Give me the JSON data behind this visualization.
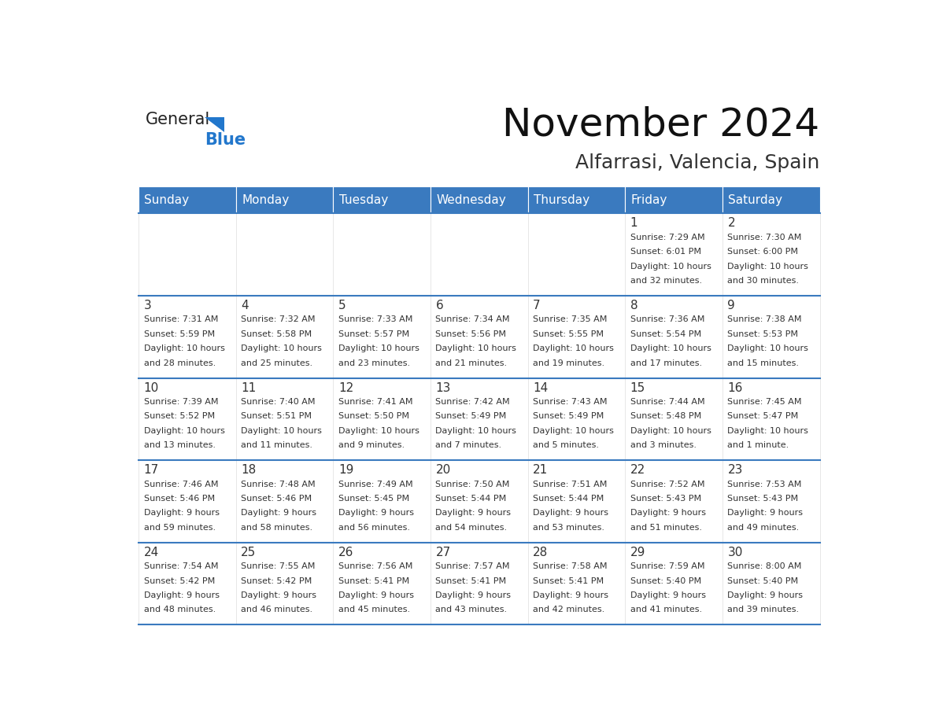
{
  "title": "November 2024",
  "subtitle": "Alfarrasi, Valencia, Spain",
  "header_color": "#3a7abf",
  "header_text_color": "#ffffff",
  "border_color": "#3a7abf",
  "text_color": "#333333",
  "days_of_week": [
    "Sunday",
    "Monday",
    "Tuesday",
    "Wednesday",
    "Thursday",
    "Friday",
    "Saturday"
  ],
  "weeks": [
    [
      {
        "day": "",
        "sunrise": "",
        "sunset": "",
        "daylight": ""
      },
      {
        "day": "",
        "sunrise": "",
        "sunset": "",
        "daylight": ""
      },
      {
        "day": "",
        "sunrise": "",
        "sunset": "",
        "daylight": ""
      },
      {
        "day": "",
        "sunrise": "",
        "sunset": "",
        "daylight": ""
      },
      {
        "day": "",
        "sunrise": "",
        "sunset": "",
        "daylight": ""
      },
      {
        "day": "1",
        "sunrise": "Sunrise: 7:29 AM",
        "sunset": "Sunset: 6:01 PM",
        "daylight": "Daylight: 10 hours\nand 32 minutes."
      },
      {
        "day": "2",
        "sunrise": "Sunrise: 7:30 AM",
        "sunset": "Sunset: 6:00 PM",
        "daylight": "Daylight: 10 hours\nand 30 minutes."
      }
    ],
    [
      {
        "day": "3",
        "sunrise": "Sunrise: 7:31 AM",
        "sunset": "Sunset: 5:59 PM",
        "daylight": "Daylight: 10 hours\nand 28 minutes."
      },
      {
        "day": "4",
        "sunrise": "Sunrise: 7:32 AM",
        "sunset": "Sunset: 5:58 PM",
        "daylight": "Daylight: 10 hours\nand 25 minutes."
      },
      {
        "day": "5",
        "sunrise": "Sunrise: 7:33 AM",
        "sunset": "Sunset: 5:57 PM",
        "daylight": "Daylight: 10 hours\nand 23 minutes."
      },
      {
        "day": "6",
        "sunrise": "Sunrise: 7:34 AM",
        "sunset": "Sunset: 5:56 PM",
        "daylight": "Daylight: 10 hours\nand 21 minutes."
      },
      {
        "day": "7",
        "sunrise": "Sunrise: 7:35 AM",
        "sunset": "Sunset: 5:55 PM",
        "daylight": "Daylight: 10 hours\nand 19 minutes."
      },
      {
        "day": "8",
        "sunrise": "Sunrise: 7:36 AM",
        "sunset": "Sunset: 5:54 PM",
        "daylight": "Daylight: 10 hours\nand 17 minutes."
      },
      {
        "day": "9",
        "sunrise": "Sunrise: 7:38 AM",
        "sunset": "Sunset: 5:53 PM",
        "daylight": "Daylight: 10 hours\nand 15 minutes."
      }
    ],
    [
      {
        "day": "10",
        "sunrise": "Sunrise: 7:39 AM",
        "sunset": "Sunset: 5:52 PM",
        "daylight": "Daylight: 10 hours\nand 13 minutes."
      },
      {
        "day": "11",
        "sunrise": "Sunrise: 7:40 AM",
        "sunset": "Sunset: 5:51 PM",
        "daylight": "Daylight: 10 hours\nand 11 minutes."
      },
      {
        "day": "12",
        "sunrise": "Sunrise: 7:41 AM",
        "sunset": "Sunset: 5:50 PM",
        "daylight": "Daylight: 10 hours\nand 9 minutes."
      },
      {
        "day": "13",
        "sunrise": "Sunrise: 7:42 AM",
        "sunset": "Sunset: 5:49 PM",
        "daylight": "Daylight: 10 hours\nand 7 minutes."
      },
      {
        "day": "14",
        "sunrise": "Sunrise: 7:43 AM",
        "sunset": "Sunset: 5:49 PM",
        "daylight": "Daylight: 10 hours\nand 5 minutes."
      },
      {
        "day": "15",
        "sunrise": "Sunrise: 7:44 AM",
        "sunset": "Sunset: 5:48 PM",
        "daylight": "Daylight: 10 hours\nand 3 minutes."
      },
      {
        "day": "16",
        "sunrise": "Sunrise: 7:45 AM",
        "sunset": "Sunset: 5:47 PM",
        "daylight": "Daylight: 10 hours\nand 1 minute."
      }
    ],
    [
      {
        "day": "17",
        "sunrise": "Sunrise: 7:46 AM",
        "sunset": "Sunset: 5:46 PM",
        "daylight": "Daylight: 9 hours\nand 59 minutes."
      },
      {
        "day": "18",
        "sunrise": "Sunrise: 7:48 AM",
        "sunset": "Sunset: 5:46 PM",
        "daylight": "Daylight: 9 hours\nand 58 minutes."
      },
      {
        "day": "19",
        "sunrise": "Sunrise: 7:49 AM",
        "sunset": "Sunset: 5:45 PM",
        "daylight": "Daylight: 9 hours\nand 56 minutes."
      },
      {
        "day": "20",
        "sunrise": "Sunrise: 7:50 AM",
        "sunset": "Sunset: 5:44 PM",
        "daylight": "Daylight: 9 hours\nand 54 minutes."
      },
      {
        "day": "21",
        "sunrise": "Sunrise: 7:51 AM",
        "sunset": "Sunset: 5:44 PM",
        "daylight": "Daylight: 9 hours\nand 53 minutes."
      },
      {
        "day": "22",
        "sunrise": "Sunrise: 7:52 AM",
        "sunset": "Sunset: 5:43 PM",
        "daylight": "Daylight: 9 hours\nand 51 minutes."
      },
      {
        "day": "23",
        "sunrise": "Sunrise: 7:53 AM",
        "sunset": "Sunset: 5:43 PM",
        "daylight": "Daylight: 9 hours\nand 49 minutes."
      }
    ],
    [
      {
        "day": "24",
        "sunrise": "Sunrise: 7:54 AM",
        "sunset": "Sunset: 5:42 PM",
        "daylight": "Daylight: 9 hours\nand 48 minutes."
      },
      {
        "day": "25",
        "sunrise": "Sunrise: 7:55 AM",
        "sunset": "Sunset: 5:42 PM",
        "daylight": "Daylight: 9 hours\nand 46 minutes."
      },
      {
        "day": "26",
        "sunrise": "Sunrise: 7:56 AM",
        "sunset": "Sunset: 5:41 PM",
        "daylight": "Daylight: 9 hours\nand 45 minutes."
      },
      {
        "day": "27",
        "sunrise": "Sunrise: 7:57 AM",
        "sunset": "Sunset: 5:41 PM",
        "daylight": "Daylight: 9 hours\nand 43 minutes."
      },
      {
        "day": "28",
        "sunrise": "Sunrise: 7:58 AM",
        "sunset": "Sunset: 5:41 PM",
        "daylight": "Daylight: 9 hours\nand 42 minutes."
      },
      {
        "day": "29",
        "sunrise": "Sunrise: 7:59 AM",
        "sunset": "Sunset: 5:40 PM",
        "daylight": "Daylight: 9 hours\nand 41 minutes."
      },
      {
        "day": "30",
        "sunrise": "Sunrise: 8:00 AM",
        "sunset": "Sunset: 5:40 PM",
        "daylight": "Daylight: 9 hours\nand 39 minutes."
      }
    ]
  ]
}
